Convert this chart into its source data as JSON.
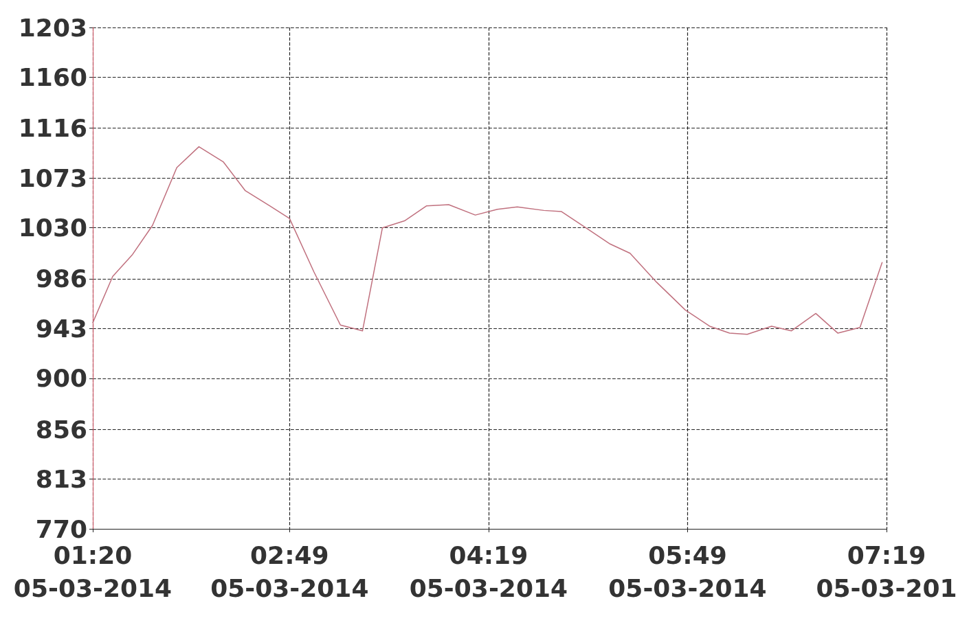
{
  "chart_data": {
    "type": "line",
    "x": [
      "2014-03-05T01:20",
      "2014-03-05T01:29",
      "2014-03-05T01:38",
      "2014-03-05T01:47",
      "2014-03-05T01:58",
      "2014-03-05T02:08",
      "2014-03-05T02:19",
      "2014-03-05T02:29",
      "2014-03-05T02:40",
      "2014-03-05T02:49",
      "2014-03-05T03:00",
      "2014-03-05T03:12",
      "2014-03-05T03:22",
      "2014-03-05T03:31",
      "2014-03-05T03:41",
      "2014-03-05T03:51",
      "2014-03-05T04:01",
      "2014-03-05T04:13",
      "2014-03-05T04:23",
      "2014-03-05T04:32",
      "2014-03-05T04:44",
      "2014-03-05T04:52",
      "2014-03-05T05:03",
      "2014-03-05T05:14",
      "2014-03-05T05:23",
      "2014-03-05T05:35",
      "2014-03-05T05:48",
      "2014-03-05T05:59",
      "2014-03-05T06:08",
      "2014-03-05T06:16",
      "2014-03-05T06:27",
      "2014-03-05T06:36",
      "2014-03-05T06:47",
      "2014-03-05T06:57",
      "2014-03-05T07:07",
      "2014-03-05T07:17"
    ],
    "series": [
      {
        "color": "#c0707e",
        "values": [
          948,
          988,
          1007,
          1032,
          1082,
          1100,
          1087,
          1062,
          1049,
          1038,
          992,
          946,
          941,
          1030,
          1036,
          1049,
          1050,
          1041,
          1046,
          1048,
          1045,
          1044,
          1030,
          1016,
          1008,
          983,
          959,
          945,
          939,
          938,
          945,
          941,
          956,
          939,
          944,
          1000
        ]
      }
    ],
    "xlim": [
      "2014-03-05T01:20",
      "2014-03-05T07:19"
    ],
    "xticks": [
      {
        "value": "2014-03-05T01:20",
        "label": "01:20\n05-03-2014"
      },
      {
        "value": "2014-03-05T02:49",
        "label": "02:49\n05-03-2014"
      },
      {
        "value": "2014-03-05T04:19",
        "label": "04:19\n05-03-2014"
      },
      {
        "value": "2014-03-05T05:49",
        "label": "05:49\n05-03-2014"
      },
      {
        "value": "2014-03-05T07:19",
        "label": "07:19\n05-03-201"
      }
    ],
    "ylim": [
      770,
      1203
    ],
    "yticks": [
      770,
      813,
      856,
      900,
      943,
      986,
      1030,
      1073,
      1116,
      1160,
      1203
    ],
    "grid": true,
    "marker": "none",
    "line_style": "solid"
  }
}
